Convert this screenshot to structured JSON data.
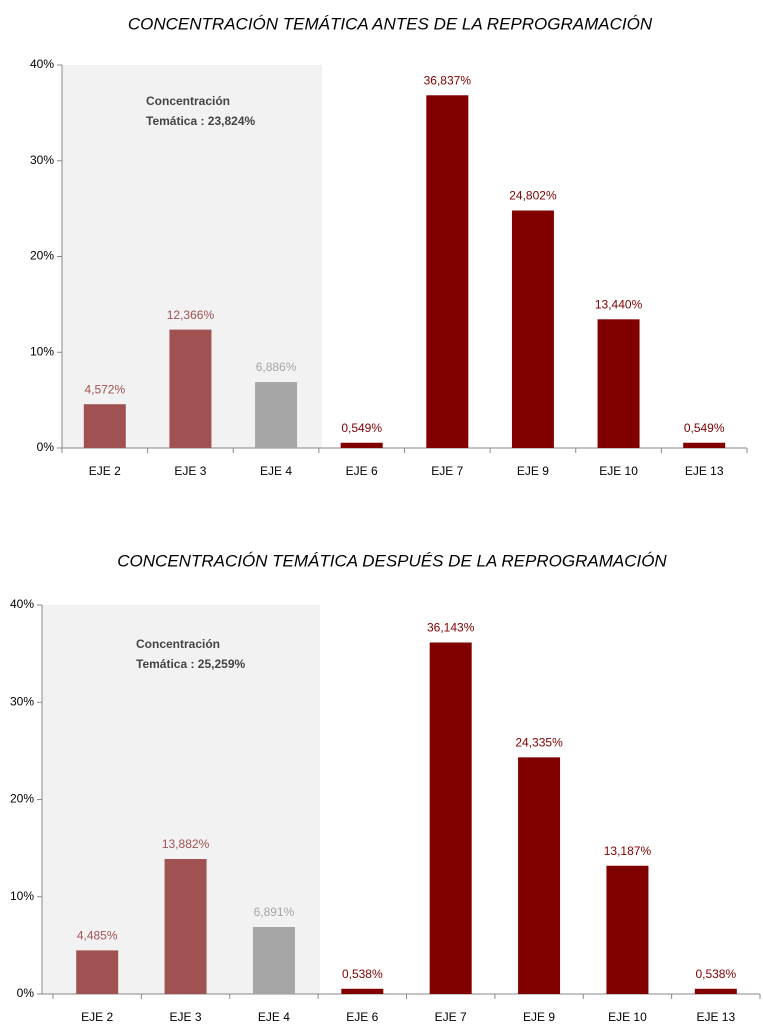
{
  "chart_data": [
    {
      "type": "bar",
      "title": "CONCENTRACIÓN TEMÁTICA ANTES DE LA REPROGRAMACIÓN",
      "categories": [
        "EJE 2",
        "EJE 3",
        "EJE 4",
        "EJE 6",
        "EJE 7",
        "EJE 9",
        "EJE 10",
        "EJE 13"
      ],
      "values": [
        4.572,
        12.366,
        6.886,
        0.549,
        36.837,
        24.802,
        13.44,
        0.549
      ],
      "value_labels": [
        "4,572%",
        "12,366%",
        "6,886%",
        "0,549%",
        "36,837%",
        "24,802%",
        "13,440%",
        "0,549%"
      ],
      "colors": [
        "#a05252",
        "#a05252",
        "#a6a6a6",
        "#800000",
        "#800000",
        "#800000",
        "#800000",
        "#800000"
      ],
      "annotation": [
        "Concentración",
        "Temática : 23,824%"
      ],
      "ylim": [
        0,
        40
      ],
      "yticks": [
        {
          "value": 0,
          "label": "0%"
        },
        {
          "value": 10,
          "label": "10%"
        },
        {
          "value": 20,
          "label": "20%"
        },
        {
          "value": 30,
          "label": "30%"
        },
        {
          "value": 40,
          "label": "40%"
        }
      ]
    },
    {
      "type": "bar",
      "title": "CONCENTRACIÓN TEMÁTICA DESPUÉS DE LA REPROGRAMACIÓN",
      "categories": [
        "EJE 2",
        "EJE 3",
        "EJE 4",
        "EJE 6",
        "EJE 7",
        "EJE 9",
        "EJE 10",
        "EJE 13"
      ],
      "values": [
        4.485,
        13.882,
        6.891,
        0.538,
        36.143,
        24.335,
        13.187,
        0.538
      ],
      "value_labels": [
        "4,485%",
        "13,882%",
        "6,891%",
        "0,538%",
        "36,143%",
        "24,335%",
        "13,187%",
        "0,538%"
      ],
      "colors": [
        "#a05252",
        "#a05252",
        "#a6a6a6",
        "#800000",
        "#800000",
        "#800000",
        "#800000",
        "#800000"
      ],
      "annotation": [
        "Concentración",
        "Temática : 25,259%"
      ],
      "ylim": [
        0,
        40
      ],
      "yticks": [
        {
          "value": 0,
          "label": "0%"
        },
        {
          "value": 10,
          "label": "10%"
        },
        {
          "value": 20,
          "label": "20%"
        },
        {
          "value": 30,
          "label": "30%"
        },
        {
          "value": 40,
          "label": "40%"
        }
      ]
    }
  ]
}
